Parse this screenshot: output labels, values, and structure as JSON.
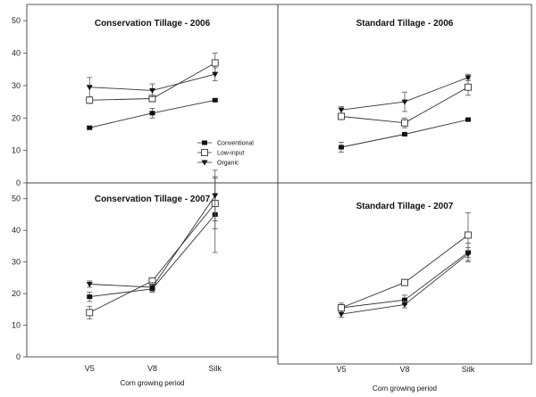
{
  "chart_data": [
    {
      "type": "line",
      "title": "Conservation Tillage - 2006",
      "categories": [
        "V5",
        "V8",
        "Silk"
      ],
      "ylim": [
        0,
        55
      ],
      "yticks": [
        0,
        10,
        20,
        30,
        40,
        50
      ],
      "show_y_ticks": true,
      "show_x_ticks": false,
      "legend": "center-right",
      "series": [
        {
          "name": "Conventional",
          "values": [
            17,
            21.5,
            25.5
          ],
          "err": [
            0.5,
            1.5,
            0.5
          ]
        },
        {
          "name": "Low-input",
          "values": [
            25.5,
            26,
            37
          ],
          "err": [
            1,
            1,
            3
          ]
        },
        {
          "name": "Organic",
          "values": [
            29.5,
            28.5,
            33.5
          ],
          "err": [
            3,
            2,
            2
          ]
        }
      ]
    },
    {
      "type": "line",
      "title": "Standard Tillage - 2006",
      "categories": [
        "V5",
        "V8",
        "Silk"
      ],
      "ylim": [
        0,
        55
      ],
      "yticks": [
        0,
        10,
        20,
        30,
        40,
        50
      ],
      "show_y_ticks": false,
      "show_x_ticks": false,
      "series": [
        {
          "name": "Conventional",
          "values": [
            11,
            15,
            19.5
          ],
          "err": [
            1.5,
            0.5,
            0.5
          ]
        },
        {
          "name": "Low-input",
          "values": [
            20.5,
            18.5,
            29.5
          ],
          "err": [
            1,
            1.5,
            2.5
          ]
        },
        {
          "name": "Organic",
          "values": [
            22.5,
            25,
            32.5
          ],
          "err": [
            1,
            3,
            1
          ]
        }
      ]
    },
    {
      "type": "line",
      "title": "Conservation Tillage - 2007",
      "categories": [
        "V5",
        "V8",
        "Silk"
      ],
      "ylim": [
        0,
        55
      ],
      "yticks": [
        0,
        10,
        20,
        30,
        40,
        50
      ],
      "show_y_ticks": true,
      "show_x_ticks": true,
      "xlabel": "Corn growing period",
      "series": [
        {
          "name": "Conventional",
          "values": [
            19,
            21.5,
            45
          ],
          "err": [
            1.5,
            1,
            12
          ]
        },
        {
          "name": "Low-input",
          "values": [
            14,
            24,
            48.5
          ],
          "err": [
            2,
            1,
            8
          ]
        },
        {
          "name": "Organic",
          "values": [
            23,
            22,
            51
          ],
          "err": [
            1,
            1.5,
            8
          ]
        }
      ]
    },
    {
      "type": "line",
      "title": "Standard Tillage - 2007",
      "categories": [
        "V5",
        "V8",
        "Silk"
      ],
      "ylim": [
        0,
        55
      ],
      "yticks": [
        0,
        10,
        20,
        30,
        40,
        50
      ],
      "show_y_ticks": false,
      "show_x_ticks": true,
      "xlabel": "Corn growing period",
      "series": [
        {
          "name": "Conventional",
          "values": [
            15.5,
            18,
            33
          ],
          "err": [
            1.5,
            1.5,
            3
          ]
        },
        {
          "name": "Low-input",
          "values": [
            15.5,
            23.5,
            38.5
          ],
          "err": [
            1,
            1,
            7
          ]
        },
        {
          "name": "Organic",
          "values": [
            13.5,
            16.5,
            32.5
          ],
          "err": [
            1,
            1,
            2
          ]
        }
      ]
    }
  ]
}
